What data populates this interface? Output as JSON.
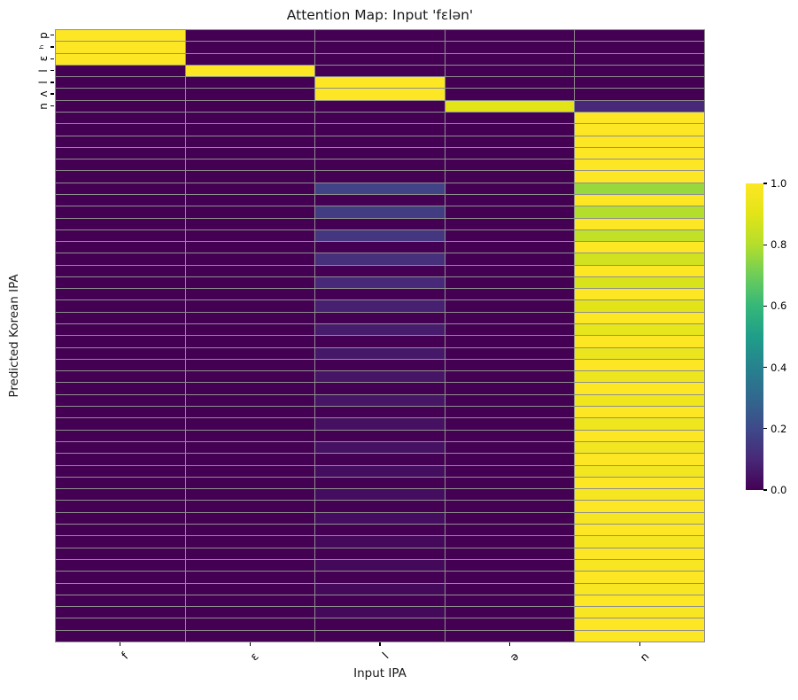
{
  "chart_data": {
    "type": "heatmap",
    "title": "Attention Map: Input 'fɛlən'",
    "xlabel": "Input IPA",
    "ylabel": "Predicted Korean IPA",
    "x_categories": [
      "f",
      "ɛ",
      "l",
      "ə",
      "n"
    ],
    "y_tick_labels": [
      "p",
      "ʰ",
      "ɛ",
      "l",
      "l",
      "ʌ",
      "n"
    ],
    "n_rows": 52,
    "n_cols": 5,
    "value_range": [
      0,
      1
    ],
    "colormap": "viridis",
    "grid_on": true,
    "grid_line_color": "#8e8e8e",
    "colormap_stops": [
      {
        "t": 0.0,
        "hex": "#440154"
      },
      {
        "t": 0.1,
        "hex": "#482878"
      },
      {
        "t": 0.2,
        "hex": "#3e4a89"
      },
      {
        "t": 0.3,
        "hex": "#31688e"
      },
      {
        "t": 0.4,
        "hex": "#26828e"
      },
      {
        "t": 0.5,
        "hex": "#1f9e89"
      },
      {
        "t": 0.6,
        "hex": "#35b779"
      },
      {
        "t": 0.7,
        "hex": "#6dcd59"
      },
      {
        "t": 0.8,
        "hex": "#b4de2c"
      },
      {
        "t": 0.9,
        "hex": "#e2e418"
      },
      {
        "t": 1.0,
        "hex": "#fde725"
      }
    ],
    "colorbar_ticks": [
      {
        "value": 0.0,
        "label": "0.0"
      },
      {
        "value": 0.2,
        "label": "0.2"
      },
      {
        "value": 0.4,
        "label": "0.4"
      },
      {
        "value": 0.6,
        "label": "0.6"
      },
      {
        "value": 0.8,
        "label": "0.8"
      },
      {
        "value": 1.0,
        "label": "1.0"
      }
    ],
    "rows": [
      [
        1,
        0,
        0,
        0,
        0
      ],
      [
        1,
        0,
        0,
        0,
        0
      ],
      [
        1,
        0,
        0,
        0,
        0
      ],
      [
        0,
        1,
        0,
        0,
        0
      ],
      [
        0,
        0,
        1,
        0,
        0
      ],
      [
        0,
        0,
        1,
        0,
        0
      ],
      [
        0,
        0,
        0,
        0.9,
        0.1
      ],
      [
        0,
        0,
        0,
        0,
        1
      ],
      [
        0,
        0,
        0,
        0,
        1
      ],
      [
        0,
        0,
        0,
        0,
        1
      ],
      [
        0,
        0,
        0,
        0,
        1
      ],
      [
        0,
        0,
        0,
        0,
        1
      ],
      [
        0,
        0,
        0,
        0,
        1
      ],
      [
        0,
        0,
        0.18,
        0,
        0.76
      ],
      [
        0,
        0,
        0,
        0,
        1
      ],
      [
        0,
        0,
        0.16,
        0,
        0.8
      ],
      [
        0,
        0,
        0,
        0,
        1
      ],
      [
        0,
        0,
        0.14,
        0,
        0.83
      ],
      [
        0,
        0,
        0,
        0,
        1
      ],
      [
        0,
        0,
        0.12,
        0,
        0.86
      ],
      [
        0,
        0,
        0,
        0,
        1
      ],
      [
        0,
        0,
        0.1,
        0,
        0.88
      ],
      [
        0,
        0,
        0,
        0,
        1
      ],
      [
        0,
        0,
        0.08,
        0,
        0.9
      ],
      [
        0,
        0,
        0,
        0,
        1
      ],
      [
        0,
        0,
        0.07,
        0,
        0.92
      ],
      [
        0,
        0,
        0,
        0,
        1
      ],
      [
        0,
        0,
        0.06,
        0,
        0.93
      ],
      [
        0,
        0,
        0,
        0,
        1
      ],
      [
        0,
        0,
        0.05,
        0,
        0.94
      ],
      [
        0,
        0,
        0,
        0,
        1
      ],
      [
        0,
        0,
        0.05,
        0,
        0.95
      ],
      [
        0,
        0,
        0,
        0,
        1
      ],
      [
        0,
        0,
        0.04,
        0,
        0.95
      ],
      [
        0,
        0,
        0,
        0,
        1
      ],
      [
        0,
        0,
        0.04,
        0,
        0.96
      ],
      [
        0,
        0,
        0,
        0,
        1
      ],
      [
        0,
        0,
        0.03,
        0,
        0.96
      ],
      [
        0,
        0,
        0,
        0,
        1
      ],
      [
        0,
        0,
        0.03,
        0,
        0.97
      ],
      [
        0,
        0,
        0,
        0,
        1
      ],
      [
        0,
        0,
        0.03,
        0,
        0.97
      ],
      [
        0,
        0,
        0,
        0,
        1
      ],
      [
        0,
        0,
        0.02,
        0,
        0.97
      ],
      [
        0,
        0,
        0,
        0,
        1
      ],
      [
        0,
        0,
        0.02,
        0,
        0.98
      ],
      [
        0,
        0,
        0,
        0,
        1
      ],
      [
        0,
        0,
        0.02,
        0,
        0.98
      ],
      [
        0,
        0,
        0,
        0,
        1
      ],
      [
        0,
        0,
        0.02,
        0,
        0.98
      ],
      [
        0,
        0,
        0,
        0,
        1
      ],
      [
        0,
        0,
        0,
        0,
        1
      ]
    ]
  }
}
